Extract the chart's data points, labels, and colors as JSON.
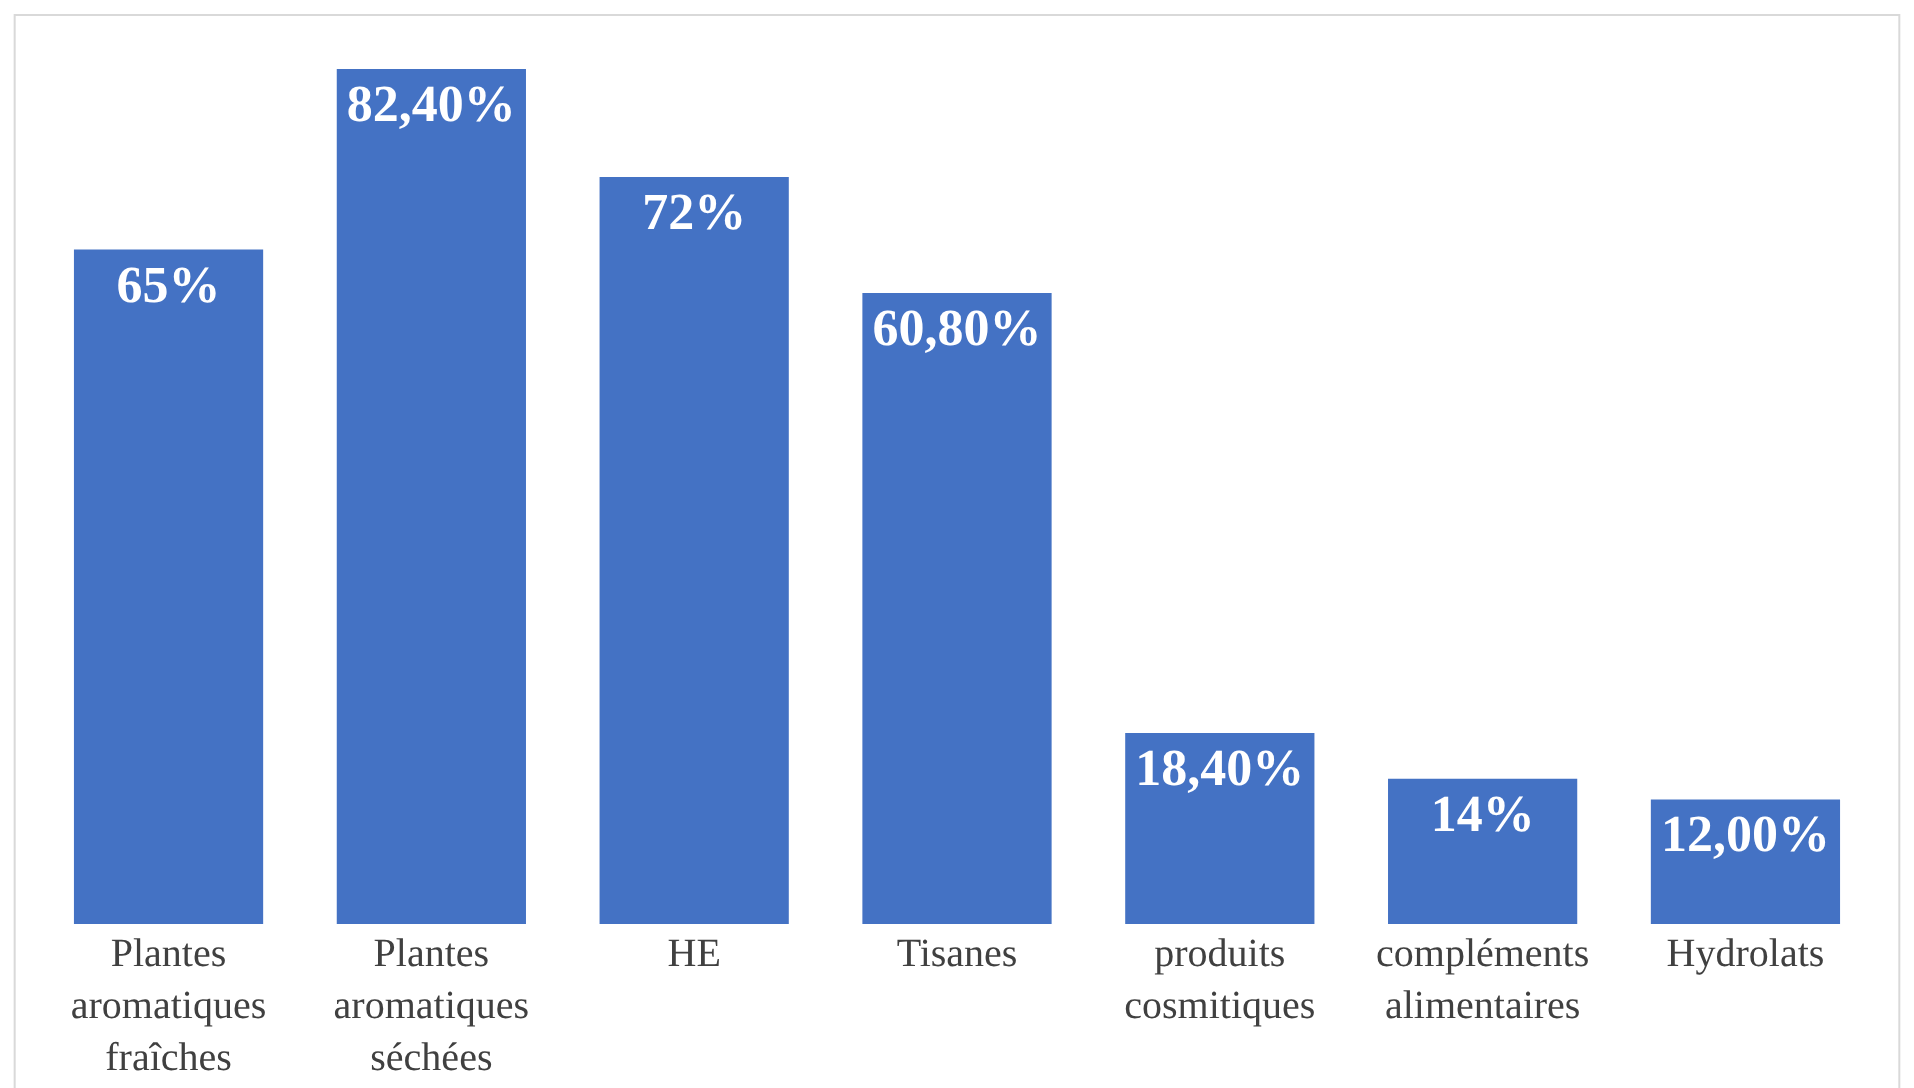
{
  "chart_data": {
    "type": "bar",
    "categories": [
      "Plantes aromatiques fraîches",
      "Plantes aromatiques séchées",
      "HE",
      "Tisanes",
      "produits cosmitiques",
      "compléments alimentaires",
      "Hydrolats"
    ],
    "values": [
      65,
      82.4,
      72,
      60.8,
      18.4,
      14,
      12
    ],
    "value_labels": [
      "65%",
      "82,40%",
      "72%",
      "60,80%",
      "18,40%",
      "14%",
      "12,00%"
    ],
    "color": "#4472c4"
  }
}
